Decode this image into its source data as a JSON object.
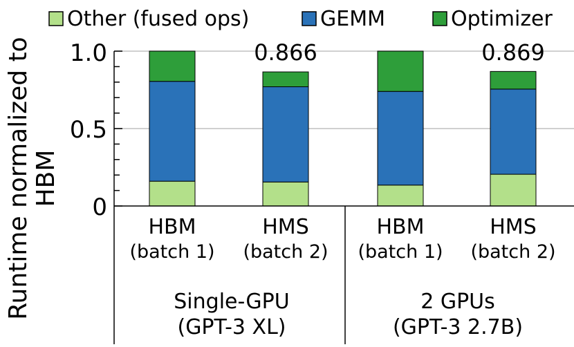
{
  "chart_data": {
    "type": "bar",
    "stacked": true,
    "ylabel_line1": "Runtime normalized to",
    "ylabel_line2": "HBM",
    "ylim": [
      0,
      1.0
    ],
    "yticks": [
      "0",
      "0.5",
      "1.0"
    ],
    "grid": true,
    "legend_position": "top",
    "categories": [
      {
        "line1": "HBM",
        "line2": "(batch 1)"
      },
      {
        "line1": "HMS",
        "line2": "(batch 2)"
      },
      {
        "line1": "HBM",
        "line2": "(batch 1)"
      },
      {
        "line1": "HMS",
        "line2": "(batch 2)"
      }
    ],
    "groups": [
      {
        "line1": "Single-GPU",
        "line2": "(GPT-3 XL)"
      },
      {
        "line1": "2 GPUs",
        "line2": "(GPT-3 2.7B)"
      }
    ],
    "series": [
      {
        "name": "Other (fused ops)",
        "color": "#b3e08a",
        "values": [
          0.16,
          0.155,
          0.135,
          0.205
        ]
      },
      {
        "name": "GEMM",
        "color": "#2a72b8",
        "values": [
          0.645,
          0.615,
          0.605,
          0.55
        ]
      },
      {
        "name": "Optimizer",
        "color": "#2e9e3a",
        "values": [
          0.195,
          0.096,
          0.26,
          0.114
        ]
      }
    ],
    "data_labels": [
      "",
      "0.866",
      "",
      "0.869"
    ]
  }
}
